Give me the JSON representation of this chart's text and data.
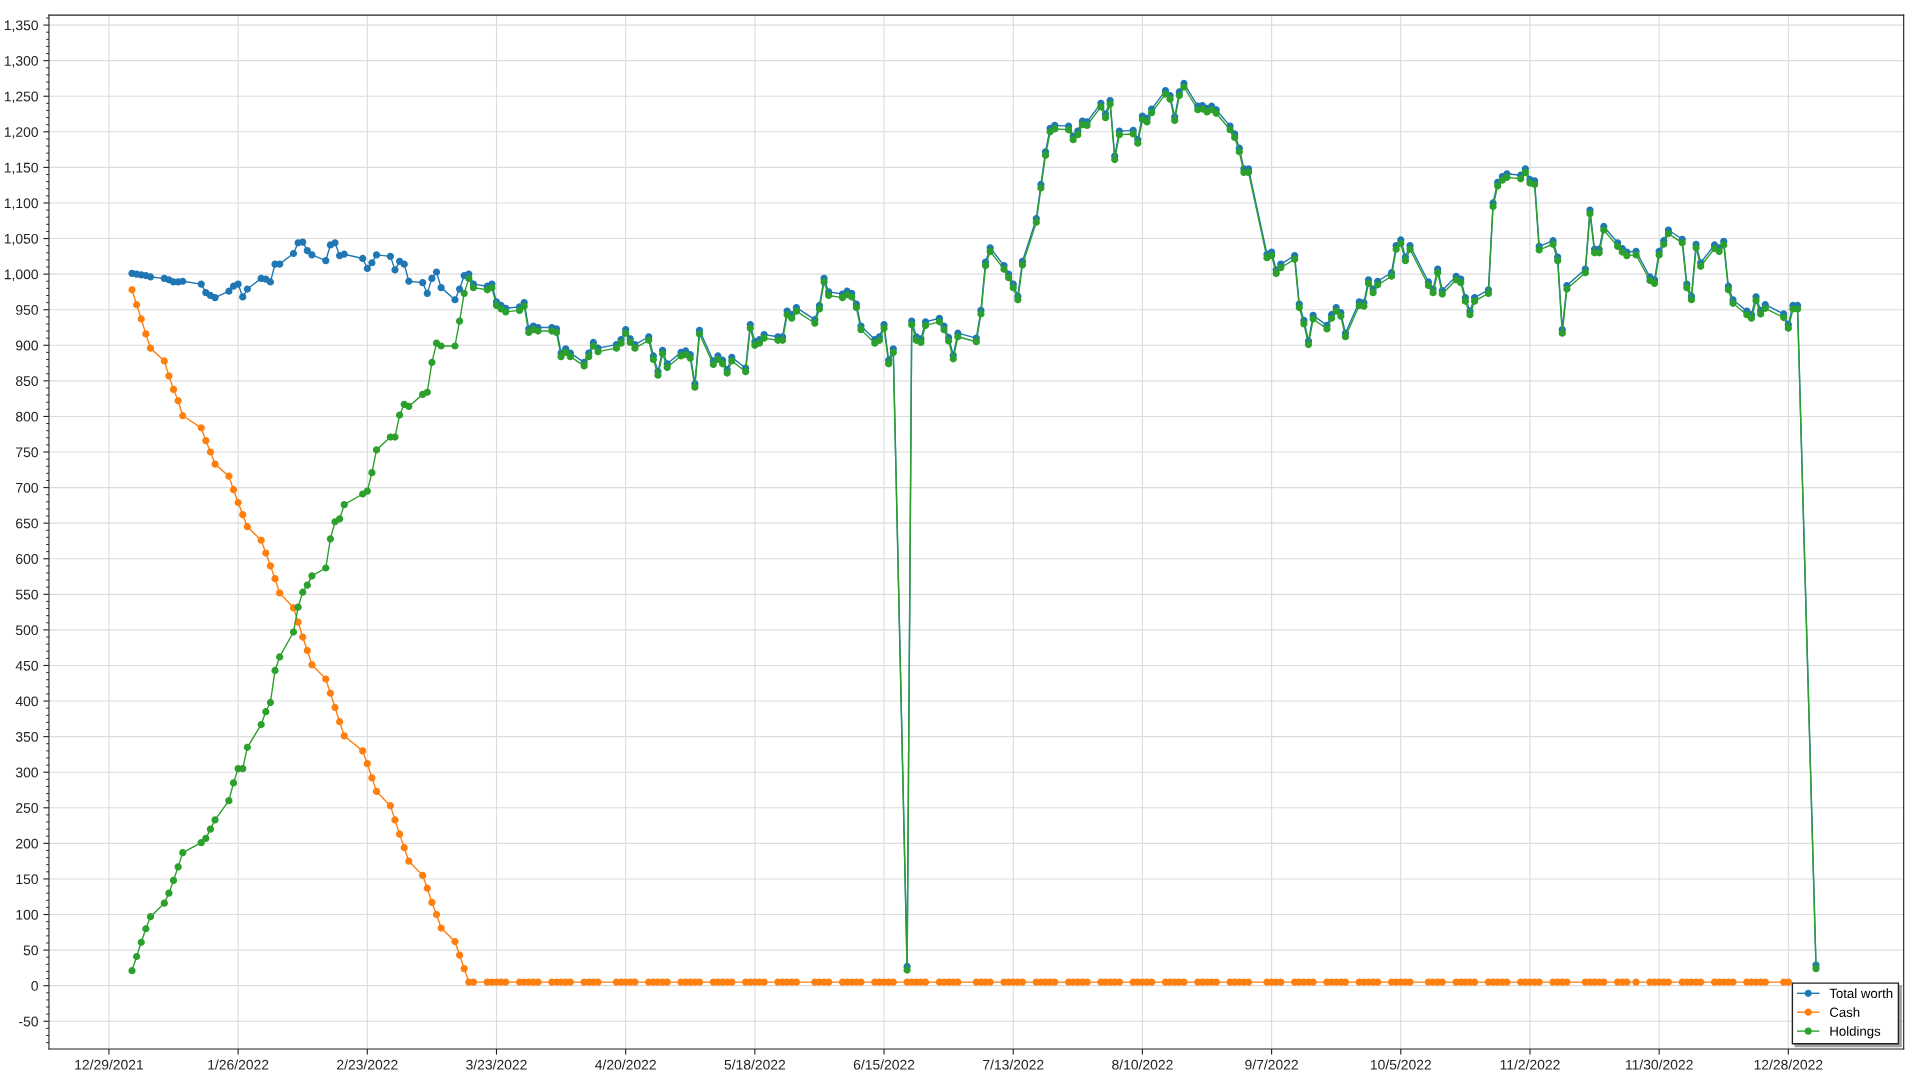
{
  "chart_data": {
    "type": "line",
    "marker": "circle",
    "line_style": "solid",
    "grid": true,
    "legend": "bottom right",
    "x": [
      "2022-01-03",
      "2022-01-04",
      "2022-01-05",
      "2022-01-06",
      "2022-01-07",
      "2022-01-10",
      "2022-01-11",
      "2022-01-12",
      "2022-01-13",
      "2022-01-14",
      "2022-01-18",
      "2022-01-19",
      "2022-01-20",
      "2022-01-21",
      "2022-01-24",
      "2022-01-25",
      "2022-01-26",
      "2022-01-27",
      "2022-01-28",
      "2022-01-31",
      "2022-02-01",
      "2022-02-02",
      "2022-02-03",
      "2022-02-04",
      "2022-02-07",
      "2022-02-08",
      "2022-02-09",
      "2022-02-10",
      "2022-02-11",
      "2022-02-14",
      "2022-02-15",
      "2022-02-16",
      "2022-02-17",
      "2022-02-18",
      "2022-02-22",
      "2022-02-23",
      "2022-02-24",
      "2022-02-25",
      "2022-02-28",
      "2022-03-01",
      "2022-03-02",
      "2022-03-03",
      "2022-03-04",
      "2022-03-07",
      "2022-03-08",
      "2022-03-09",
      "2022-03-10",
      "2022-03-11",
      "2022-03-14",
      "2022-03-15",
      "2022-03-16",
      "2022-03-17",
      "2022-03-18",
      "2022-03-21",
      "2022-03-22",
      "2022-03-23",
      "2022-03-24",
      "2022-03-25",
      "2022-03-28",
      "2022-03-29",
      "2022-03-30",
      "2022-03-31",
      "2022-04-01",
      "2022-04-04",
      "2022-04-05",
      "2022-04-06",
      "2022-04-07",
      "2022-04-08",
      "2022-04-11",
      "2022-04-12",
      "2022-04-13",
      "2022-04-14",
      "2022-04-18",
      "2022-04-19",
      "2022-04-20",
      "2022-04-21",
      "2022-04-22",
      "2022-04-25",
      "2022-04-26",
      "2022-04-27",
      "2022-04-28",
      "2022-04-29",
      "2022-05-02",
      "2022-05-03",
      "2022-05-04",
      "2022-05-05",
      "2022-05-06",
      "2022-05-09",
      "2022-05-10",
      "2022-05-11",
      "2022-05-12",
      "2022-05-13",
      "2022-05-16",
      "2022-05-17",
      "2022-05-18",
      "2022-05-19",
      "2022-05-20",
      "2022-05-23",
      "2022-05-24",
      "2022-05-25",
      "2022-05-26",
      "2022-05-27",
      "2022-05-31",
      "2022-06-01",
      "2022-06-02",
      "2022-06-03",
      "2022-06-06",
      "2022-06-07",
      "2022-06-08",
      "2022-06-09",
      "2022-06-10",
      "2022-06-13",
      "2022-06-14",
      "2022-06-15",
      "2022-06-16",
      "2022-06-17",
      "2022-06-20",
      "2022-06-21",
      "2022-06-22",
      "2022-06-23",
      "2022-06-24",
      "2022-06-27",
      "2022-06-28",
      "2022-06-29",
      "2022-06-30",
      "2022-07-01",
      "2022-07-05",
      "2022-07-06",
      "2022-07-07",
      "2022-07-08",
      "2022-07-11",
      "2022-07-12",
      "2022-07-13",
      "2022-07-14",
      "2022-07-15",
      "2022-07-18",
      "2022-07-19",
      "2022-07-20",
      "2022-07-21",
      "2022-07-22",
      "2022-07-25",
      "2022-07-26",
      "2022-07-27",
      "2022-07-28",
      "2022-07-29",
      "2022-08-01",
      "2022-08-02",
      "2022-08-03",
      "2022-08-04",
      "2022-08-05",
      "2022-08-08",
      "2022-08-09",
      "2022-08-10",
      "2022-08-11",
      "2022-08-12",
      "2022-08-15",
      "2022-08-16",
      "2022-08-17",
      "2022-08-18",
      "2022-08-19",
      "2022-08-22",
      "2022-08-23",
      "2022-08-24",
      "2022-08-25",
      "2022-08-26",
      "2022-08-29",
      "2022-08-30",
      "2022-08-31",
      "2022-09-01",
      "2022-09-02",
      "2022-09-06",
      "2022-09-07",
      "2022-09-08",
      "2022-09-09",
      "2022-09-12",
      "2022-09-13",
      "2022-09-14",
      "2022-09-15",
      "2022-09-16",
      "2022-09-19",
      "2022-09-20",
      "2022-09-21",
      "2022-09-22",
      "2022-09-23",
      "2022-09-26",
      "2022-09-27",
      "2022-09-28",
      "2022-09-29",
      "2022-09-30",
      "2022-10-03",
      "2022-10-04",
      "2022-10-05",
      "2022-10-06",
      "2022-10-07",
      "2022-10-11",
      "2022-10-12",
      "2022-10-13",
      "2022-10-14",
      "2022-10-17",
      "2022-10-18",
      "2022-10-19",
      "2022-10-20",
      "2022-10-21",
      "2022-10-24",
      "2022-10-25",
      "2022-10-26",
      "2022-10-27",
      "2022-10-28",
      "2022-10-31",
      "2022-11-01",
      "2022-11-02",
      "2022-11-03",
      "2022-11-04",
      "2022-11-07",
      "2022-11-08",
      "2022-11-09",
      "2022-11-10",
      "2022-11-14",
      "2022-11-15",
      "2022-11-16",
      "2022-11-17",
      "2022-11-18",
      "2022-11-21",
      "2022-11-22",
      "2022-11-23",
      "2022-11-25",
      "2022-11-28",
      "2022-11-29",
      "2022-11-30",
      "2022-12-01",
      "2022-12-02",
      "2022-12-05",
      "2022-12-06",
      "2022-12-07",
      "2022-12-08",
      "2022-12-09",
      "2022-12-12",
      "2022-12-13",
      "2022-12-14",
      "2022-12-15",
      "2022-12-16",
      "2022-12-19",
      "2022-12-20",
      "2022-12-21",
      "2022-12-22",
      "2022-12-23",
      "2022-12-27",
      "2022-12-28",
      "2022-12-29",
      "2022-12-30",
      "2023-01-03"
    ],
    "series": [
      {
        "name": "Total worth",
        "color": "#1f77b4",
        "values": [
          1001,
          1000,
          999,
          998,
          996,
          994,
          992,
          989,
          989,
          990,
          986,
          974,
          970,
          967,
          976,
          983,
          986,
          968,
          979,
          994,
          993,
          989,
          1014,
          1014,
          1029,
          1044,
          1045,
          1033,
          1027,
          1019,
          1041,
          1044,
          1026,
          1028,
          1022,
          1008,
          1016,
          1027,
          1025,
          1006,
          1018,
          1014,
          990,
          988,
          973,
          994,
          1003,
          981,
          964,
          979,
          998,
          1000,
          986,
          983,
          986,
          961,
          956,
          952,
          954,
          960,
          923,
          927,
          925,
          925,
          923,
          889,
          895,
          889,
          876,
          889,
          904,
          896,
          901,
          908,
          922,
          909,
          901,
          912,
          885,
          863,
          893,
          874,
          890,
          892,
          887,
          846,
          921,
          878,
          885,
          879,
          866,
          883,
          868,
          929,
          905,
          908,
          915,
          912,
          912,
          948,
          943,
          953,
          936,
          956,
          994,
          975,
          972,
          976,
          973,
          958,
          927,
          908,
          912,
          929,
          879,
          895,
          27,
          934,
          912,
          909,
          933,
          938,
          927,
          911,
          886,
          917,
          910,
          949,
          1017,
          1037,
          1012,
          1000,
          986,
          969,
          1018,
          1078,
          1126,
          1172,
          1205,
          1209,
          1208,
          1194,
          1201,
          1215,
          1214,
          1240,
          1225,
          1244,
          1166,
          1201,
          1202,
          1189,
          1222,
          1219,
          1232,
          1258,
          1251,
          1221,
          1256,
          1268,
          1236,
          1237,
          1233,
          1236,
          1231,
          1208,
          1197,
          1177,
          1148,
          1148,
          1028,
          1031,
          1006,
          1014,
          1026,
          958,
          935,
          906,
          942,
          928,
          943,
          953,
          946,
          917,
          961,
          960,
          992,
          979,
          990,
          1002,
          1040,
          1048,
          1024,
          1040,
          989,
          979,
          1007,
          977,
          997,
          993,
          967,
          948,
          967,
          978,
          1100,
          1129,
          1137,
          1141,
          1139,
          1148,
          1133,
          1131,
          1039,
          1047,
          1024,
          922,
          984,
          1007,
          1090,
          1035,
          1035,
          1067,
          1044,
          1036,
          1031,
          1032,
          996,
          992,
          1032,
          1047,
          1062,
          1049,
          986,
          969,
          1042,
          1016,
          1041,
          1037,
          1046,
          983,
          964,
          948,
          943,
          968,
          949,
          957,
          944,
          929,
          956,
          956,
          29
        ]
      },
      {
        "name": "Cash",
        "color": "#ff7f0e",
        "values": [
          978,
          957,
          937,
          916,
          896,
          878,
          857,
          838,
          822,
          801,
          784,
          766,
          750,
          733,
          716,
          697,
          679,
          662,
          645,
          626,
          608,
          590,
          572,
          552,
          531,
          511,
          490,
          471,
          451,
          431,
          411,
          391,
          371,
          351,
          330,
          312,
          292,
          273,
          253,
          233,
          213,
          194,
          175,
          155,
          137,
          117,
          100,
          81,
          62,
          43,
          24,
          5,
          5,
          5,
          5,
          5,
          5,
          5,
          5,
          5,
          5,
          5,
          5,
          5,
          5,
          5,
          5,
          5,
          5,
          5,
          5,
          5,
          5,
          5,
          5,
          5,
          5,
          5,
          5,
          5,
          5,
          5,
          5,
          5,
          5,
          5,
          5,
          5,
          5,
          5,
          5,
          5,
          5,
          5,
          5,
          5,
          5,
          5,
          5,
          5,
          5,
          5,
          5,
          5,
          5,
          5,
          5,
          5,
          5,
          5,
          5,
          5,
          5,
          5,
          5,
          5,
          5,
          5,
          5,
          5,
          5,
          5,
          5,
          5,
          5,
          5,
          5,
          5,
          5,
          5,
          5,
          5,
          5,
          5,
          5,
          5,
          5,
          5,
          5,
          5,
          5,
          5,
          5,
          5,
          5,
          5,
          5,
          5,
          5,
          5,
          5,
          5,
          5,
          5,
          5,
          5,
          5,
          5,
          5,
          5,
          5,
          5,
          5,
          5,
          5,
          5,
          5,
          5,
          5,
          5,
          5,
          5,
          5,
          5,
          5,
          5,
          5,
          5,
          5,
          5,
          5,
          5,
          5,
          5,
          5,
          5,
          5,
          5,
          5,
          5,
          5,
          5,
          5,
          5,
          5,
          5,
          5,
          5,
          5,
          5,
          5,
          5,
          5,
          5,
          5,
          5,
          5,
          5,
          5,
          5,
          5,
          5,
          5,
          5,
          5,
          5,
          5,
          5,
          5,
          5,
          5,
          5,
          5,
          5,
          5,
          5,
          5,
          5,
          5,
          5,
          5,
          5,
          5,
          5,
          5,
          5,
          5,
          5,
          5,
          5,
          5,
          5,
          5,
          5,
          5,
          5,
          5,
          5,
          null,
          null,
          null
        ]
      },
      {
        "name": "Holdings",
        "color": "#2ca02c",
        "values": [
          21,
          41,
          61,
          80,
          97,
          116,
          130,
          148,
          167,
          187,
          201,
          207,
          220,
          233,
          260,
          285,
          305,
          305,
          335,
          367,
          385,
          398,
          443,
          462,
          497,
          532,
          553,
          563,
          576,
          587,
          628,
          652,
          656,
          676,
          691,
          695,
          721,
          753,
          771,
          771,
          802,
          817,
          814,
          831,
          834,
          876,
          903,
          899,
          899,
          934,
          973,
          994,
          981,
          978,
          981,
          956,
          951,
          947,
          949,
          955,
          918,
          922,
          920,
          920,
          918,
          884,
          890,
          884,
          871,
          884,
          899,
          891,
          896,
          903,
          917,
          904,
          896,
          907,
          880,
          858,
          888,
          869,
          885,
          887,
          882,
          841,
          916,
          873,
          880,
          874,
          861,
          878,
          863,
          924,
          900,
          903,
          910,
          907,
          907,
          943,
          938,
          948,
          931,
          951,
          989,
          970,
          967,
          971,
          968,
          953,
          922,
          903,
          907,
          924,
          874,
          890,
          22,
          929,
          907,
          904,
          928,
          933,
          922,
          906,
          881,
          912,
          905,
          944,
          1012,
          1032,
          1007,
          995,
          981,
          964,
          1013,
          1073,
          1121,
          1167,
          1200,
          1204,
          1203,
          1189,
          1196,
          1210,
          1209,
          1235,
          1220,
          1239,
          1161,
          1196,
          1197,
          1184,
          1217,
          1214,
          1227,
          1253,
          1246,
          1216,
          1251,
          1263,
          1231,
          1232,
          1228,
          1231,
          1226,
          1203,
          1192,
          1172,
          1143,
          1143,
          1023,
          1026,
          1001,
          1009,
          1021,
          953,
          930,
          901,
          937,
          923,
          938,
          948,
          941,
          912,
          956,
          955,
          987,
          974,
          985,
          997,
          1035,
          1043,
          1019,
          1035,
          984,
          974,
          1002,
          972,
          992,
          988,
          962,
          943,
          962,
          973,
          1095,
          1124,
          1132,
          1136,
          1134,
          1143,
          1128,
          1126,
          1034,
          1042,
          1019,
          917,
          979,
          1002,
          1085,
          1030,
          1030,
          1062,
          1039,
          1031,
          1026,
          1027,
          991,
          987,
          1027,
          1042,
          1057,
          1044,
          981,
          964,
          1037,
          1011,
          1036,
          1032,
          1041,
          978,
          959,
          943,
          938,
          963,
          944,
          952,
          939,
          924,
          951,
          951,
          24
        ]
      }
    ],
    "xlim": [
      "2021-12-16",
      "2023-01-22"
    ],
    "xticks": [
      {
        "value": "2021-12-29",
        "label": "12/29/2021"
      },
      {
        "value": "2022-01-26",
        "label": "1/26/2022"
      },
      {
        "value": "2022-02-23",
        "label": "2/23/2022"
      },
      {
        "value": "2022-03-23",
        "label": "3/23/2022"
      },
      {
        "value": "2022-04-20",
        "label": "4/20/2022"
      },
      {
        "value": "2022-05-18",
        "label": "5/18/2022"
      },
      {
        "value": "2022-06-15",
        "label": "6/15/2022"
      },
      {
        "value": "2022-07-13",
        "label": "7/13/2022"
      },
      {
        "value": "2022-08-10",
        "label": "8/10/2022"
      },
      {
        "value": "2022-09-07",
        "label": "9/7/2022"
      },
      {
        "value": "2022-10-05",
        "label": "10/5/2022"
      },
      {
        "value": "2022-11-02",
        "label": "11/2/2022"
      },
      {
        "value": "2022-11-30",
        "label": "11/30/2022"
      },
      {
        "value": "2022-12-28",
        "label": "12/28/2022"
      }
    ],
    "ylim": [
      -89,
      1364
    ],
    "yticks": [
      {
        "value": -50,
        "label": "-50"
      },
      0,
      50,
      100,
      150,
      200,
      250,
      300,
      350,
      400,
      450,
      500,
      550,
      600,
      650,
      700,
      750,
      800,
      850,
      900,
      950,
      {
        "value": 1000,
        "label": "1,000"
      },
      {
        "value": 1050,
        "label": "1,050"
      },
      {
        "value": 1100,
        "label": "1,100"
      },
      {
        "value": 1150,
        "label": "1,150"
      },
      {
        "value": 1200,
        "label": "1,200"
      },
      {
        "value": 1250,
        "label": "1,250"
      },
      {
        "value": 1300,
        "label": "1,300"
      },
      {
        "value": 1350,
        "label": "1,350"
      }
    ]
  }
}
